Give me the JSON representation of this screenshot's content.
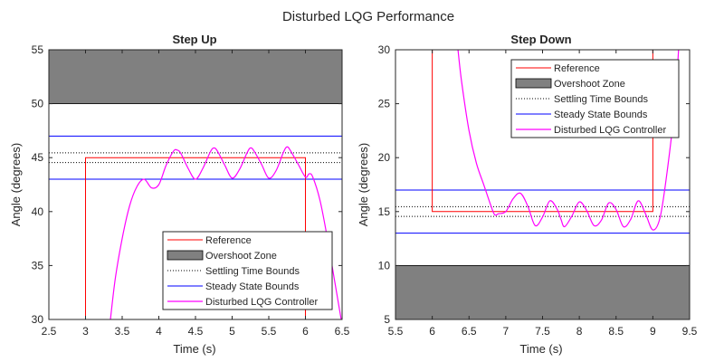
{
  "figure": {
    "title": "Disturbed LQG Performance"
  },
  "chart_data": [
    {
      "type": "line",
      "title": "Step Up",
      "xlabel": "Time (s)",
      "ylabel": "Angle (degrees)",
      "xlim": [
        2.5,
        6.5
      ],
      "ylim": [
        30,
        55
      ],
      "xticks": [
        2.5,
        3,
        3.5,
        4,
        4.5,
        5,
        5.5,
        6,
        6.5
      ],
      "xtick_labels": [
        "2.5",
        "3",
        "3.5",
        "4",
        "4.5",
        "5",
        "5.5",
        "6",
        "6.5"
      ],
      "yticks": [
        30,
        35,
        40,
        45,
        50,
        55
      ],
      "ytick_labels": [
        "30",
        "35",
        "40",
        "45",
        "50",
        "55"
      ],
      "grid": false,
      "legend_position": "bottom-right",
      "legend": [
        "Reference",
        "Overshoot Zone",
        "Settling Time Bounds",
        "Steady State Bounds",
        "Disturbed LQG Controller"
      ],
      "overshoot_zone": {
        "y_from": 50,
        "y_to": 55,
        "color": "#808080"
      },
      "settling_bounds": [
        44.55,
        45.45
      ],
      "steady_state_bounds": [
        43,
        47
      ],
      "reference": {
        "x": [
          3,
          3,
          6,
          6
        ],
        "y": [
          30,
          45,
          45,
          30
        ]
      },
      "controller": {
        "x": [
          3.3,
          3.4,
          3.5,
          3.6,
          3.7,
          3.8,
          3.9,
          4.0,
          4.1,
          4.2,
          4.25,
          4.3,
          4.4,
          4.5,
          4.6,
          4.7,
          4.75,
          4.8,
          4.9,
          5.0,
          5.1,
          5.2,
          5.25,
          5.3,
          5.4,
          5.5,
          5.6,
          5.7,
          5.75,
          5.8,
          5.9,
          6.0,
          6.05,
          6.1,
          6.2,
          6.3,
          6.4,
          6.5
        ],
        "y": [
          27.5,
          33.5,
          37.5,
          40.5,
          42.3,
          43.0,
          42.2,
          42.5,
          44.3,
          45.6,
          45.7,
          45.4,
          44.0,
          43.0,
          44.0,
          45.5,
          45.9,
          45.6,
          44.3,
          43.1,
          43.9,
          45.4,
          45.9,
          45.6,
          44.4,
          43.1,
          43.8,
          45.5,
          46.0,
          45.6,
          44.4,
          43.2,
          43.5,
          43.2,
          41.0,
          37.5,
          33.5,
          29.5
        ]
      },
      "colors": {
        "reference": "#ff0000",
        "steady_state": "#0000ff",
        "controller": "#ff00ff",
        "overshoot": "#808080"
      }
    },
    {
      "type": "line",
      "title": "Step Down",
      "xlabel": "Time (s)",
      "ylabel": "Angle (degrees)",
      "xlim": [
        5.5,
        9.5
      ],
      "ylim": [
        5,
        30
      ],
      "xticks": [
        5.5,
        6,
        6.5,
        7,
        7.5,
        8,
        8.5,
        9,
        9.5
      ],
      "xtick_labels": [
        "5.5",
        "6",
        "6.5",
        "7",
        "7.5",
        "8",
        "8.5",
        "9",
        "9.5"
      ],
      "yticks": [
        5,
        10,
        15,
        20,
        25,
        30
      ],
      "ytick_labels": [
        "5",
        "10",
        "15",
        "20",
        "25",
        "30"
      ],
      "grid": false,
      "legend_position": "top-right",
      "legend": [
        "Reference",
        "Overshoot Zone",
        "Settling Time Bounds",
        "Steady State Bounds",
        "Disturbed LQG Controller"
      ],
      "overshoot_zone": {
        "y_from": 5,
        "y_to": 10,
        "color": "#808080"
      },
      "settling_bounds": [
        14.55,
        15.45
      ],
      "steady_state_bounds": [
        13,
        17
      ],
      "reference": {
        "x": [
          6,
          6,
          9,
          9
        ],
        "y": [
          30,
          15,
          15,
          30
        ]
      },
      "controller": {
        "x": [
          6.35,
          6.4,
          6.5,
          6.6,
          6.7,
          6.8,
          6.85,
          6.9,
          7.0,
          7.1,
          7.2,
          7.3,
          7.4,
          7.5,
          7.6,
          7.7,
          7.75,
          7.8,
          7.9,
          8.0,
          8.1,
          8.2,
          8.3,
          8.4,
          8.5,
          8.6,
          8.7,
          8.8,
          8.9,
          9.0,
          9.1,
          9.2,
          9.3,
          9.35
        ],
        "y": [
          30.0,
          27.0,
          22.5,
          19.5,
          17.5,
          15.5,
          14.7,
          14.8,
          15.0,
          16.2,
          16.7,
          15.5,
          13.7,
          14.5,
          16.0,
          15.2,
          14.3,
          13.6,
          14.6,
          15.9,
          15.1,
          13.7,
          14.2,
          15.8,
          15.2,
          13.6,
          14.3,
          16.0,
          14.8,
          13.3,
          14.5,
          19.0,
          25.0,
          30.0
        ]
      },
      "colors": {
        "reference": "#ff0000",
        "steady_state": "#0000ff",
        "controller": "#ff00ff",
        "overshoot": "#808080"
      }
    }
  ]
}
